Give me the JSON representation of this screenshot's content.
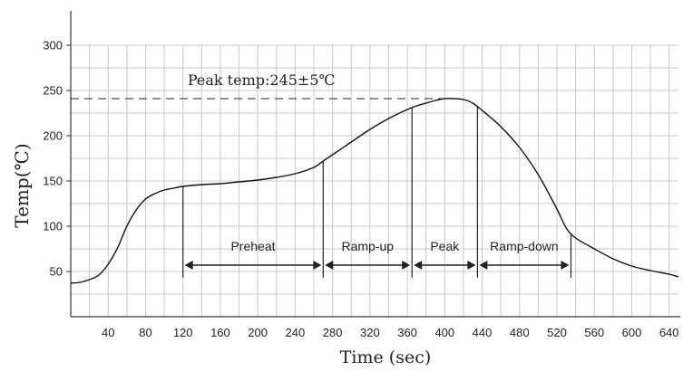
{
  "chart_data": {
    "type": "line",
    "title": "",
    "xlabel": "Time (sec)",
    "ylabel": "Temp(℃)",
    "xlim": [
      0,
      650
    ],
    "ylim": [
      0,
      330
    ],
    "x_ticks": [
      40,
      80,
      120,
      160,
      200,
      240,
      280,
      320,
      360,
      400,
      440,
      480,
      520,
      560,
      600,
      640
    ],
    "y_ticks": [
      50,
      100,
      150,
      200,
      250,
      300
    ],
    "grid": true,
    "series": [
      {
        "name": "",
        "x": [
          0,
          10,
          20,
          30,
          40,
          50,
          60,
          70,
          80,
          90,
          100,
          110,
          120,
          140,
          160,
          180,
          200,
          220,
          240,
          260,
          270,
          280,
          300,
          320,
          340,
          360,
          370,
          380,
          390,
          400,
          410,
          420,
          430,
          440,
          460,
          480,
          500,
          520,
          530,
          540,
          560,
          580,
          600,
          620,
          640,
          650
        ],
        "y": [
          37,
          38,
          41,
          46,
          58,
          76,
          100,
          118,
          130,
          136,
          140,
          142,
          144,
          146,
          147,
          149,
          151,
          154,
          158,
          165,
          172,
          179,
          193,
          207,
          219,
          229,
          233,
          236,
          239,
          241,
          241,
          240,
          236,
          228,
          210,
          187,
          157,
          119,
          98,
          87,
          75,
          64,
          56,
          51,
          47,
          44
        ]
      }
    ],
    "annotations": {
      "peak_label": "Peak temp:245±5℃",
      "peak_line_y": 241,
      "phase_bounds": [
        120,
        270,
        365,
        435,
        535
      ],
      "phases": [
        "Preheat",
        "Ramp-up",
        "Peak",
        "Ramp-down"
      ],
      "phase_arrow_y": 57
    }
  }
}
